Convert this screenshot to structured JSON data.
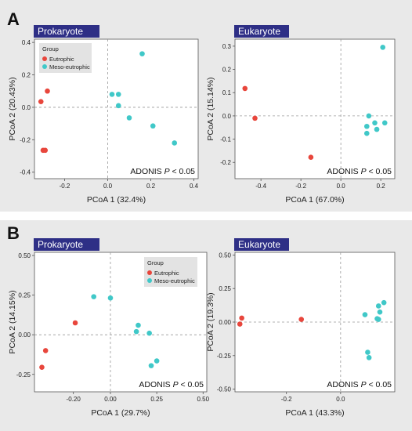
{
  "figure": {
    "panel_labels": [
      "A",
      "B"
    ]
  },
  "chart_data": [
    {
      "type": "scatter",
      "panel": "A",
      "title": "Prokaryote",
      "xlabel": "PCoA 1 (32.4%)",
      "ylabel": "PCoA 2 (20.43%)",
      "xlim": [
        -0.34,
        0.42
      ],
      "ylim": [
        -0.44,
        0.42
      ],
      "xticks": [
        -0.2,
        0.0,
        0.2,
        0.4
      ],
      "xtick_labels": [
        "-0.2",
        "0.0",
        "0.2",
        "0.4"
      ],
      "yticks": [
        -0.4,
        -0.2,
        0.0,
        0.2,
        0.4
      ],
      "ytick_labels": [
        "-0.4",
        "-0.2",
        "0.0",
        "0.2",
        "0.4"
      ],
      "annotation": {
        "prefix": "ADONIS ",
        "italic": "P",
        "suffix": " < 0.05"
      },
      "legend": {
        "title": "Group",
        "position": "top-left"
      },
      "series": [
        {
          "name": "Eutrophic",
          "color": "#e8463c",
          "x": [
            -0.28,
            -0.31,
            -0.3,
            -0.29
          ],
          "y": [
            0.1,
            0.035,
            -0.265,
            -0.265
          ]
        },
        {
          "name": "Meso-eutrophic",
          "color": "#40c8c8",
          "x": [
            0.02,
            0.05,
            0.05,
            0.1,
            0.16,
            0.21,
            0.31
          ],
          "y": [
            0.08,
            0.08,
            0.01,
            -0.065,
            0.33,
            -0.115,
            -0.22
          ]
        }
      ]
    },
    {
      "type": "scatter",
      "panel": "A",
      "title": "Eukaryote",
      "xlabel": "PCoA 1 (67.0%)",
      "ylabel": "PCoA 2 (15.14%)",
      "xlim": [
        -0.53,
        0.27
      ],
      "ylim": [
        -0.27,
        0.33
      ],
      "xticks": [
        -0.4,
        -0.2,
        0.0,
        0.2
      ],
      "xtick_labels": [
        "-0.4",
        "-0.2",
        "0.0",
        "0.2"
      ],
      "yticks": [
        -0.2,
        -0.1,
        0.0,
        0.1,
        0.2,
        0.3
      ],
      "ytick_labels": [
        "-0.2",
        "-0.1",
        "0.0",
        "0.1",
        "0.2",
        "0.3"
      ],
      "annotation": {
        "prefix": "ADONIS ",
        "italic": "P",
        "suffix": " < 0.05"
      },
      "series": [
        {
          "name": "Eutrophic",
          "color": "#e8463c",
          "x": [
            -0.48,
            -0.43,
            -0.15
          ],
          "y": [
            0.118,
            -0.01,
            -0.178
          ]
        },
        {
          "name": "Meso-eutrophic",
          "color": "#40c8c8",
          "x": [
            0.14,
            0.13,
            0.17,
            0.13,
            0.18,
            0.22,
            0.21
          ],
          "y": [
            0.0,
            -0.045,
            -0.03,
            -0.075,
            -0.058,
            -0.03,
            0.295
          ]
        }
      ]
    },
    {
      "type": "scatter",
      "panel": "B",
      "title": "Prokaryote",
      "xlabel": "PCoA 1 (29.7%)",
      "ylabel": "PCoA 2 (14.15%)",
      "xlim": [
        -0.41,
        0.52
      ],
      "ylim": [
        -0.36,
        0.52
      ],
      "xticks": [
        -0.2,
        0.0,
        0.25,
        0.5
      ],
      "xtick_labels": [
        "-0.20",
        "0.00",
        "0.25",
        "0.50"
      ],
      "yticks": [
        -0.25,
        0.0,
        0.25,
        0.5
      ],
      "ytick_labels": [
        "-0.25",
        "0.00",
        "0.25",
        "0.50"
      ],
      "annotation": {
        "prefix": "ADONIS ",
        "italic": "P",
        "suffix": " < 0.05"
      },
      "legend": {
        "title": "Group",
        "position": "top-right"
      },
      "series": [
        {
          "name": "Eutrophic",
          "color": "#e8463c",
          "x": [
            -0.35,
            -0.37,
            -0.19
          ],
          "y": [
            -0.1,
            -0.205,
            0.075
          ]
        },
        {
          "name": "Meso-eutrophic",
          "color": "#40c8c8",
          "x": [
            -0.09,
            0.0,
            0.15,
            0.14,
            0.21,
            0.25,
            0.22
          ],
          "y": [
            0.24,
            0.232,
            0.06,
            0.02,
            0.01,
            -0.165,
            -0.195
          ]
        }
      ]
    },
    {
      "type": "scatter",
      "panel": "B",
      "title": "Eukaryote",
      "xlabel": "PCoA 1 (43.3%)",
      "ylabel": "PCoA 2 (19.3%)",
      "xlim": [
        -0.39,
        0.2
      ],
      "ylim": [
        -0.52,
        0.52
      ],
      "xticks": [
        -0.2,
        0.0
      ],
      "xtick_labels": [
        "-0.2",
        "0.0"
      ],
      "yticks": [
        -0.5,
        -0.25,
        0.0,
        0.25,
        0.5
      ],
      "ytick_labels": [
        "-0.50",
        "-0.25",
        "0.00",
        "0.25",
        "0.50"
      ],
      "annotation": {
        "prefix": "ADONIS ",
        "italic": "P",
        "suffix": " < 0.05"
      },
      "series": [
        {
          "name": "Eutrophic",
          "color": "#e8463c",
          "x": [
            -0.365,
            -0.372,
            -0.145
          ],
          "y": [
            0.03,
            -0.015,
            0.02
          ]
        },
        {
          "name": "Meso-eutrophic",
          "color": "#40c8c8",
          "x": [
            0.16,
            0.14,
            0.145,
            0.09,
            0.14,
            0.135,
            0.1,
            0.105
          ],
          "y": [
            0.145,
            0.12,
            0.075,
            0.055,
            0.02,
            0.025,
            -0.225,
            -0.265
          ]
        }
      ]
    }
  ]
}
